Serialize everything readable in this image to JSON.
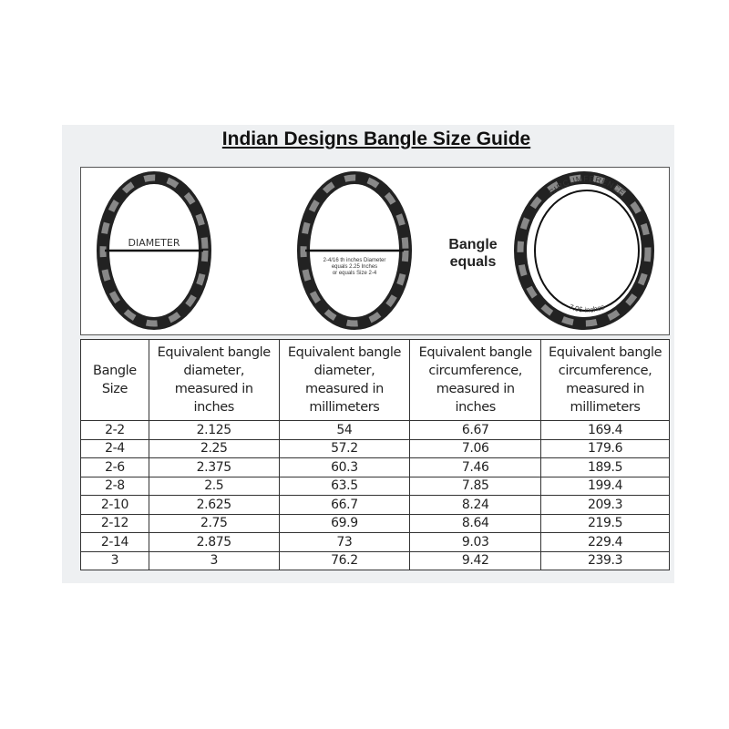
{
  "title": "Indian Designs Bangle Size Guide",
  "diagram": {
    "diameter_label": "DIAMETER",
    "example_lines": [
      "2-4/16 th inches Diameter",
      "equals 2.25 Inches",
      "or equals Size 2-4"
    ],
    "equals_lines": [
      "Bangle",
      "equals"
    ],
    "circumference_label": "CIRCUMFERENCE",
    "circumference_value": "7.06 inches"
  },
  "table": {
    "headers": [
      [
        "Bangle",
        "Size"
      ],
      [
        "Equivalent bangle",
        "diameter,",
        "measured in",
        "inches"
      ],
      [
        "Equivalent bangle",
        "diameter,",
        "measured in",
        "millimeters"
      ],
      [
        "Equivalent bangle",
        "circumference,",
        "measured in",
        "inches"
      ],
      [
        "Equivalent bangle",
        "circumference,",
        "measured in",
        "millimeters"
      ]
    ],
    "rows": [
      [
        "2-2",
        "2.125",
        "54",
        "6.67",
        "169.4"
      ],
      [
        "2-4",
        "2.25",
        "57.2",
        "7.06",
        "179.6"
      ],
      [
        "2-6",
        "2.375",
        "60.3",
        "7.46",
        "189.5"
      ],
      [
        "2-8",
        "2.5",
        "63.5",
        "7.85",
        "199.4"
      ],
      [
        "2-10",
        "2.625",
        "66.7",
        "8.24",
        "209.3"
      ],
      [
        "2-12",
        "2.75",
        "69.9",
        "8.64",
        "219.5"
      ],
      [
        "2-14",
        "2.875",
        "73",
        "9.03",
        "229.4"
      ],
      [
        "3",
        "3",
        "76.2",
        "9.42",
        "239.3"
      ]
    ]
  }
}
